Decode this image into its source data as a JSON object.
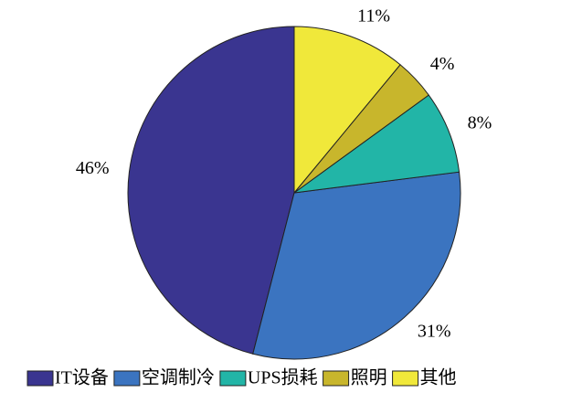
{
  "chart_data": {
    "type": "pie",
    "categories": [
      "IT设备",
      "空调制冷",
      "UPS损耗",
      "照明",
      "其他"
    ],
    "values": [
      46,
      31,
      8,
      4,
      11
    ],
    "value_labels": [
      "46%",
      "31%",
      "8%",
      "4%",
      "11%"
    ],
    "colors": [
      "#3a3590",
      "#3b74c0",
      "#22b5a7",
      "#c8b62c",
      "#f0e83a"
    ],
    "direction": "counterclockwise",
    "legend": "bottom"
  }
}
